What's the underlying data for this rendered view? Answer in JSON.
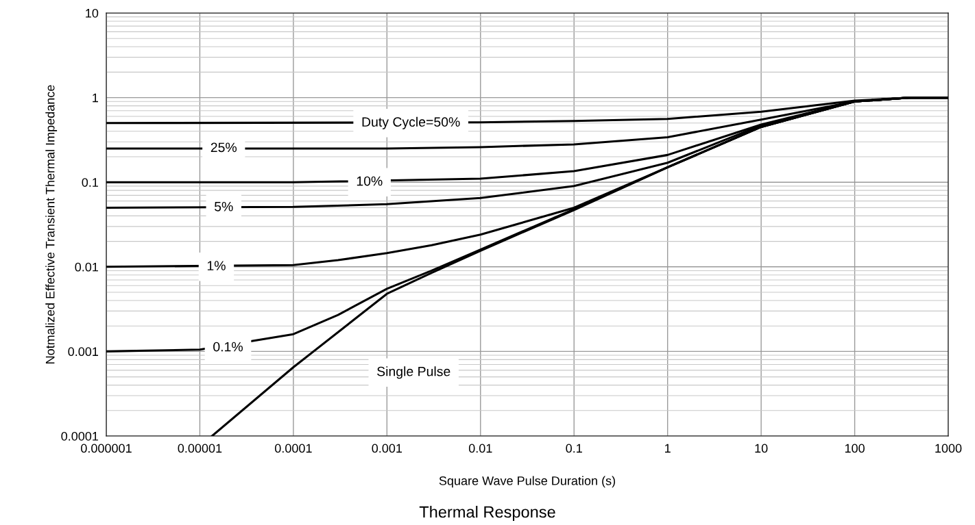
{
  "chart_data": {
    "type": "line",
    "title": "Thermal Response",
    "xlabel": "Square Wave Pulse Duration (s)",
    "ylabel": "Notmalized Effective Transient Thermal Impedance",
    "log": "xy",
    "grid": true,
    "legend": false,
    "marker": "none",
    "line_style": "solid",
    "xlim": [
      1e-06,
      1000
    ],
    "ylim": [
      0.0001,
      10
    ],
    "xticks": [
      {
        "value": 1e-06,
        "label": "0.000001"
      },
      {
        "value": 1e-05,
        "label": "0.00001"
      },
      {
        "value": 0.0001,
        "label": "0.0001"
      },
      {
        "value": 0.001,
        "label": "0.001"
      },
      {
        "value": 0.01,
        "label": "0.01"
      },
      {
        "value": 0.1,
        "label": "0.1"
      },
      1,
      10,
      100,
      1000
    ],
    "yticks": [
      {
        "value": 0.0001,
        "label": "0.0001"
      },
      {
        "value": 0.001,
        "label": "0.001"
      },
      {
        "value": 0.01,
        "label": "0.01"
      },
      {
        "value": 0.1,
        "label": "0.1"
      },
      1,
      10
    ],
    "series": [
      {
        "color": "#000000",
        "x": [
          1e-06,
          0.01,
          0.1,
          1,
          10,
          100,
          400,
          1000
        ],
        "values": [
          0.5,
          0.51,
          0.53,
          0.56,
          0.68,
          0.92,
          1.0,
          1.0
        ]
      },
      {
        "color": "#000000",
        "x": [
          1e-06,
          0.001,
          0.01,
          0.1,
          1,
          10,
          100,
          400,
          1000
        ],
        "values": [
          0.25,
          0.25,
          0.26,
          0.28,
          0.34,
          0.55,
          0.9,
          1.0,
          1.0
        ]
      },
      {
        "color": "#000000",
        "x": [
          1e-06,
          0.0001,
          0.01,
          0.1,
          1,
          10,
          100,
          400,
          1000
        ],
        "values": [
          0.1,
          0.1,
          0.11,
          0.135,
          0.21,
          0.48,
          0.9,
          1.0,
          1.0
        ]
      },
      {
        "color": "#000000",
        "x": [
          1e-06,
          0.0001,
          0.001,
          0.01,
          0.1,
          1,
          10,
          100,
          400,
          1000
        ],
        "values": [
          0.05,
          0.051,
          0.055,
          0.065,
          0.09,
          0.17,
          0.47,
          0.9,
          1.0,
          1.0
        ]
      },
      {
        "color": "#000000",
        "x": [
          1e-06,
          0.0001,
          0.0003,
          0.001,
          0.003,
          0.01,
          0.1,
          1,
          10,
          100,
          400,
          1000
        ],
        "values": [
          0.01,
          0.0105,
          0.012,
          0.0145,
          0.018,
          0.024,
          0.05,
          0.15,
          0.45,
          0.9,
          1.0,
          1.0
        ]
      },
      {
        "color": "#000000",
        "x": [
          1e-06,
          1e-05,
          0.0001,
          0.0003,
          0.001,
          0.003,
          0.01,
          0.1,
          1,
          10,
          100,
          400,
          1000
        ],
        "values": [
          0.001,
          0.00105,
          0.0016,
          0.0027,
          0.0055,
          0.009,
          0.016,
          0.048,
          0.15,
          0.45,
          0.9,
          1.0,
          1.0
        ]
      },
      {
        "color": "#000000",
        "x": [
          1.35e-05,
          0.0001,
          0.001,
          0.003,
          0.01,
          0.1,
          1,
          10,
          100,
          400,
          1000
        ],
        "values": [
          0.0001,
          0.00065,
          0.0048,
          0.0085,
          0.0155,
          0.047,
          0.15,
          0.45,
          0.9,
          1.0,
          1.0
        ]
      }
    ],
    "annotations": [
      {
        "text": "Duty Cycle=50%",
        "x": 0.0018,
        "y": 0.5
      },
      {
        "text": "25%",
        "x": 1.8e-05,
        "y": 0.25
      },
      {
        "text": "10%",
        "x": 0.00065,
        "y": 0.1
      },
      {
        "text": "5%",
        "x": 1.8e-05,
        "y": 0.05
      },
      {
        "text": "1%",
        "x": 1.5e-05,
        "y": 0.01
      },
      {
        "text": "0.1%",
        "x": 2e-05,
        "y": 0.0011
      },
      "Single Pulse"
    ]
  }
}
